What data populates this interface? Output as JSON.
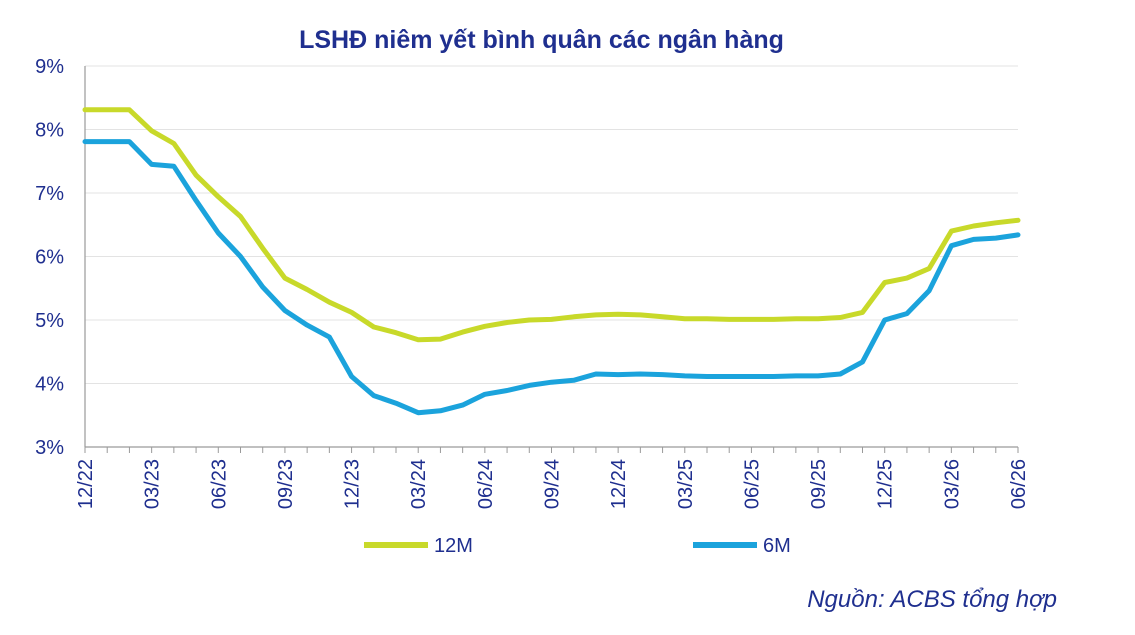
{
  "chart_data": {
    "type": "line",
    "title": "LSHĐ niêm yết bình quân các ngân hàng",
    "xlabel": "",
    "ylabel": "",
    "ylim": [
      3,
      9
    ],
    "yticks": [
      "3%",
      "4%",
      "5%",
      "6%",
      "7%",
      "8%",
      "9%"
    ],
    "x": [
      "12/22",
      "01/23",
      "02/23",
      "03/23",
      "04/23",
      "05/23",
      "06/23",
      "07/23",
      "08/23",
      "09/23",
      "10/23",
      "11/23",
      "12/23",
      "01/24",
      "02/24",
      "03/24",
      "04/24",
      "05/24",
      "06/24",
      "07/24",
      "08/24",
      "09/24",
      "10/24",
      "11/24",
      "12/24",
      "01/25",
      "02/25",
      "03/25",
      "04/25",
      "05/25",
      "06/25",
      "07/25",
      "08/25",
      "09/25",
      "10/25",
      "11/25",
      "12/25",
      "01/26",
      "02/26",
      "03/26",
      "04/26",
      "05/26",
      "06/26"
    ],
    "xticks": [
      "12/22",
      "03/23",
      "06/23",
      "09/23",
      "12/23",
      "03/24",
      "06/24",
      "09/24",
      "12/24",
      "03/25",
      "06/25",
      "09/25",
      "12/25",
      "03/26",
      "06/26"
    ],
    "series": [
      {
        "name": "12M",
        "color": "#c8d92a",
        "values": [
          8.31,
          8.31,
          8.31,
          7.98,
          7.78,
          7.28,
          6.94,
          6.63,
          6.13,
          5.66,
          5.48,
          5.28,
          5.12,
          4.89,
          4.8,
          4.69,
          4.7,
          4.81,
          4.9,
          4.96,
          5.0,
          5.01,
          5.05,
          5.08,
          5.09,
          5.08,
          5.05,
          5.02,
          5.02,
          5.01,
          5.01,
          5.01,
          5.02,
          5.02,
          5.04,
          5.12,
          5.59,
          5.66,
          5.81,
          6.4,
          6.48,
          6.53,
          6.57
        ]
      },
      {
        "name": "6M",
        "color": "#1ba3dc",
        "values": [
          7.81,
          7.81,
          7.81,
          7.45,
          7.42,
          6.88,
          6.37,
          6.0,
          5.52,
          5.15,
          4.92,
          4.73,
          4.11,
          3.81,
          3.69,
          3.54,
          3.57,
          3.66,
          3.83,
          3.89,
          3.97,
          4.02,
          4.05,
          4.15,
          4.14,
          4.15,
          4.14,
          4.12,
          4.11,
          4.11,
          4.11,
          4.11,
          4.12,
          4.12,
          4.15,
          4.34,
          5.0,
          5.1,
          5.46,
          6.17,
          6.27,
          6.29,
          6.34
        ]
      }
    ],
    "grid": true,
    "legend": "bottom"
  },
  "footer": {
    "source": "Nguồn: ACBS tổng hợp"
  }
}
